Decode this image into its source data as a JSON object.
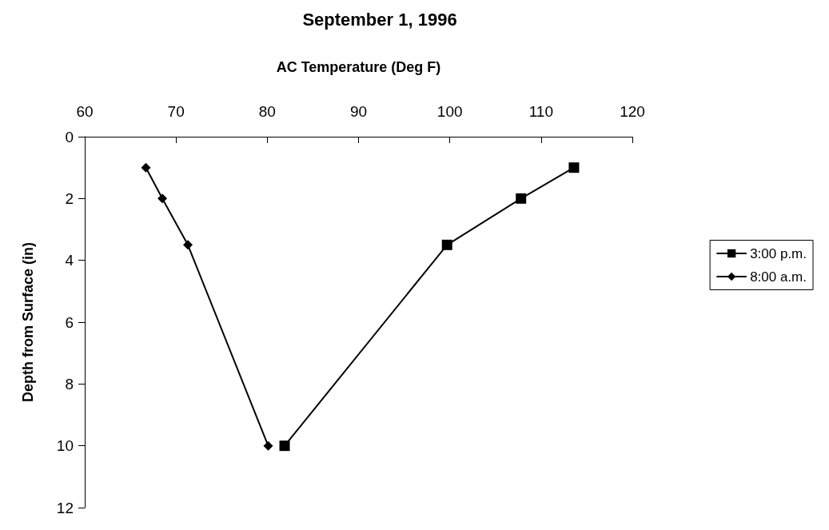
{
  "chart_data": {
    "type": "line",
    "title": "September 1, 1996",
    "xlabel": "AC Temperature (Deg F)",
    "ylabel": "Depth from Surface (in)",
    "xlim": [
      60,
      120
    ],
    "xticks": [
      60,
      70,
      80,
      90,
      100,
      110,
      120
    ],
    "ylim": [
      12,
      0
    ],
    "yticks": [
      0,
      2,
      4,
      6,
      8,
      10,
      12
    ],
    "grid": false,
    "legend": "right",
    "line_style": "solid",
    "series": [
      {
        "name": "3:00 p.m.",
        "color": "#000000",
        "marker": "square",
        "x": [
          113.6,
          107.8,
          99.7,
          81.9
        ],
        "values": [
          1,
          2,
          3.5,
          10
        ]
      },
      {
        "name": "8:00 a.m.",
        "color": "#000000",
        "marker": "diamond",
        "x": [
          66.7,
          68.5,
          71.3,
          80.1
        ],
        "values": [
          1,
          2,
          3.5,
          10
        ]
      }
    ]
  }
}
